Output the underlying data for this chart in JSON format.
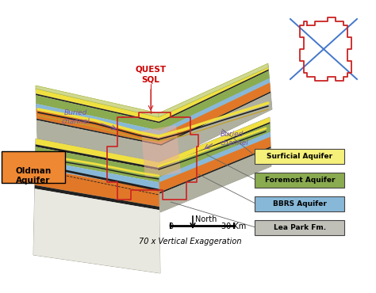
{
  "background_color": "#ffffff",
  "legend_items": [
    {
      "label": "Surficial Aquifer",
      "color": "#f5f07a",
      "text_color": "#000000"
    },
    {
      "label": "Foremost Aquifer",
      "color": "#8aab50",
      "text_color": "#000000"
    },
    {
      "label": "BBRS Aquifer",
      "color": "#88b8d8",
      "text_color": "#000000"
    },
    {
      "label": "Lea Park Fm.",
      "color": "#c0c0b8",
      "text_color": "#000000"
    }
  ],
  "oldman_label": "Oldman\nAquifer",
  "oldman_color": "#ee8833",
  "quest_sql_color": "#cc0000",
  "buried_channel_color": "#7755aa",
  "north_label": "North",
  "scale_label0": "0",
  "scale_label1": "30 Km",
  "vert_exag_label": "70 x Vertical Exaggeration",
  "panel_gray": "#b0b0a0",
  "panel_mid": "#c8c8b8",
  "panel_light": "#d8d8cc",
  "panel_white": "#e8e8e0",
  "layer_yellow": "#f0e040",
  "layer_yellow2": "#d8c830",
  "layer_green": "#8aab50",
  "layer_green2": "#a8c060",
  "layer_blue": "#88b8d8",
  "layer_orange": "#e07828",
  "layer_black": "#202020",
  "layer_gray": "#b0b0a0",
  "red_color": "#cc2222",
  "blue_color": "#4477cc",
  "pink_color": "#e8b0a0",
  "intersection_color": "#c8a090"
}
